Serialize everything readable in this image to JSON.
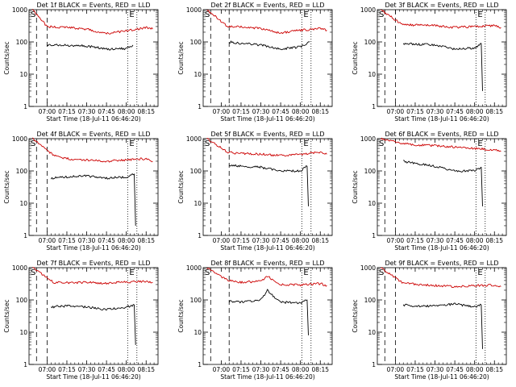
{
  "colors": {
    "events": "#000000",
    "lld": "#cc0000",
    "axes": "#000000",
    "background": "#ffffff"
  },
  "shared": {
    "ylabel": "Counts/sec",
    "xlabel": "Start Time (18-Jul-11 06:46:20)",
    "yticks": [
      "1",
      "10",
      "100",
      "1000"
    ],
    "xticks": [
      "07:00",
      "07:15",
      "07:30",
      "07:45",
      "08:00",
      "08:15"
    ],
    "marker_s": "S",
    "marker_e": "E"
  },
  "chart_data": [
    {
      "type": "line",
      "title": "Det 1f BLACK = Events, RED = LLD",
      "yscale": "log",
      "ylim": [
        1,
        1000
      ],
      "xlim": [
        "06:46:20",
        "08:24"
      ],
      "dashed_lines": [
        "06:52",
        "07:00"
      ],
      "dotted_lines": [
        "08:01",
        "08:08"
      ],
      "series": [
        {
          "name": "Events",
          "color": "black",
          "x": [
            "07:00",
            "07:15",
            "07:30",
            "07:45",
            "08:00",
            "08:05"
          ],
          "y": [
            80,
            78,
            75,
            60,
            62,
            80
          ]
        },
        {
          "name": "LLD",
          "color": "red",
          "x": [
            "06:49",
            "07:00",
            "07:15",
            "07:30",
            "07:45",
            "08:00",
            "08:15",
            "08:20"
          ],
          "y": [
            1000,
            300,
            280,
            250,
            180,
            220,
            280,
            250
          ]
        }
      ]
    },
    {
      "type": "line",
      "title": "Det 2f BLACK = Events, RED = LLD",
      "yscale": "log",
      "ylim": [
        1,
        1000
      ],
      "xlim": [
        "06:46:20",
        "08:24"
      ],
      "dashed_lines": [
        "06:52",
        "07:06"
      ],
      "dotted_lines": [
        "08:01",
        "08:08"
      ],
      "series": [
        {
          "name": "Events",
          "color": "black",
          "x": [
            "07:06",
            "07:15",
            "07:30",
            "07:45",
            "08:00",
            "08:07"
          ],
          "y": [
            100,
            90,
            80,
            60,
            70,
            100
          ]
        },
        {
          "name": "LLD",
          "color": "red",
          "x": [
            "06:49",
            "07:05",
            "07:15",
            "07:30",
            "07:45",
            "08:00",
            "08:15",
            "08:20"
          ],
          "y": [
            1000,
            300,
            290,
            260,
            190,
            230,
            260,
            230
          ]
        }
      ]
    },
    {
      "type": "line",
      "title": "Det 3f BLACK = Events, RED = LLD",
      "yscale": "log",
      "ylim": [
        1,
        1000
      ],
      "xlim": [
        "06:46:20",
        "08:24"
      ],
      "dashed_lines": [
        "06:52",
        "07:00"
      ],
      "dotted_lines": [
        "08:01",
        "08:08"
      ],
      "series": [
        {
          "name": "Events",
          "color": "black",
          "x": [
            "07:06",
            "07:15",
            "07:30",
            "07:45",
            "08:00",
            "08:05",
            "08:06"
          ],
          "y": [
            90,
            85,
            80,
            60,
            65,
            90,
            3
          ]
        },
        {
          "name": "LLD",
          "color": "red",
          "x": [
            "06:49",
            "07:05",
            "07:15",
            "07:30",
            "07:45",
            "08:00",
            "08:15",
            "08:20"
          ],
          "y": [
            1000,
            350,
            330,
            320,
            280,
            300,
            320,
            280
          ]
        }
      ]
    },
    {
      "type": "line",
      "title": "Det 4f BLACK = Events, RED = LLD",
      "yscale": "log",
      "ylim": [
        1,
        1000
      ],
      "xlim": [
        "06:46:20",
        "08:24"
      ],
      "dashed_lines": [
        "06:52",
        "07:00"
      ],
      "dotted_lines": [
        "08:01",
        "08:08"
      ],
      "series": [
        {
          "name": "Events",
          "color": "black",
          "x": [
            "07:03",
            "07:15",
            "07:30",
            "07:45",
            "08:00",
            "08:06",
            "08:07"
          ],
          "y": [
            60,
            65,
            70,
            60,
            65,
            80,
            2
          ]
        },
        {
          "name": "LLD",
          "color": "red",
          "x": [
            "06:49",
            "07:05",
            "07:15",
            "07:30",
            "07:45",
            "08:00",
            "08:15",
            "08:20"
          ],
          "y": [
            1000,
            300,
            240,
            220,
            200,
            220,
            240,
            200
          ]
        }
      ]
    },
    {
      "type": "line",
      "title": "Det 5f BLACK = Events, RED = LLD",
      "yscale": "log",
      "ylim": [
        1,
        1000
      ],
      "xlim": [
        "06:46:20",
        "08:24"
      ],
      "dashed_lines": [
        "06:52",
        "07:06"
      ],
      "dotted_lines": [
        "08:01",
        "08:08"
      ],
      "series": [
        {
          "name": "Events",
          "color": "black",
          "x": [
            "07:06",
            "07:15",
            "07:30",
            "07:45",
            "08:00",
            "08:05",
            "08:06"
          ],
          "y": [
            150,
            140,
            130,
            100,
            100,
            140,
            8
          ]
        },
        {
          "name": "LLD",
          "color": "red",
          "x": [
            "06:49",
            "07:05",
            "07:15",
            "07:30",
            "07:45",
            "08:00",
            "08:15",
            "08:20"
          ],
          "y": [
            1000,
            380,
            350,
            330,
            300,
            330,
            380,
            330
          ]
        }
      ]
    },
    {
      "type": "line",
      "title": "Det 6f BLACK = Events, RED = LLD",
      "yscale": "log",
      "ylim": [
        1,
        1000
      ],
      "xlim": [
        "06:46:20",
        "08:24"
      ],
      "dashed_lines": [
        "06:52",
        "07:00"
      ],
      "dotted_lines": [
        "08:01",
        "08:08"
      ],
      "series": [
        {
          "name": "Events",
          "color": "black",
          "x": [
            "07:06",
            "07:15",
            "07:30",
            "07:45",
            "08:00",
            "08:05",
            "08:06"
          ],
          "y": [
            200,
            170,
            140,
            100,
            100,
            130,
            8
          ]
        },
        {
          "name": "LLD",
          "color": "red",
          "x": [
            "06:49",
            "07:05",
            "07:15",
            "07:30",
            "07:45",
            "08:00",
            "08:15",
            "08:20"
          ],
          "y": [
            1000,
            700,
            650,
            600,
            550,
            500,
            450,
            400
          ]
        }
      ]
    },
    {
      "type": "line",
      "title": "Det 7f BLACK = Events, RED = LLD",
      "yscale": "log",
      "ylim": [
        1,
        1000
      ],
      "xlim": [
        "06:46:20",
        "08:24"
      ],
      "dashed_lines": [
        "06:52",
        "07:00"
      ],
      "dotted_lines": [
        "08:01",
        "08:08"
      ],
      "series": [
        {
          "name": "Events",
          "color": "black",
          "x": [
            "07:03",
            "07:15",
            "07:30",
            "07:45",
            "08:00",
            "08:06",
            "08:07"
          ],
          "y": [
            60,
            65,
            60,
            50,
            60,
            70,
            4
          ]
        },
        {
          "name": "LLD",
          "color": "red",
          "x": [
            "06:49",
            "07:05",
            "07:15",
            "07:30",
            "07:45",
            "08:00",
            "08:15",
            "08:20"
          ],
          "y": [
            1000,
            350,
            340,
            350,
            330,
            360,
            380,
            350
          ]
        }
      ]
    },
    {
      "type": "line",
      "title": "Det 8f BLACK = Events, RED = LLD",
      "yscale": "log",
      "ylim": [
        1,
        1000
      ],
      "xlim": [
        "06:46:20",
        "08:24"
      ],
      "dashed_lines": [
        "06:52",
        "07:06"
      ],
      "dotted_lines": [
        "08:01",
        "08:08"
      ],
      "series": [
        {
          "name": "Events",
          "color": "black",
          "x": [
            "07:06",
            "07:15",
            "07:30",
            "07:35",
            "07:40",
            "07:45",
            "08:00",
            "08:05",
            "08:06"
          ],
          "y": [
            90,
            85,
            100,
            200,
            120,
            85,
            80,
            100,
            8
          ]
        },
        {
          "name": "LLD",
          "color": "red",
          "x": [
            "06:49",
            "07:05",
            "07:15",
            "07:30",
            "07:35",
            "07:40",
            "07:45",
            "08:00",
            "08:15",
            "08:20"
          ],
          "y": [
            1000,
            400,
            350,
            380,
            550,
            380,
            300,
            290,
            320,
            280
          ]
        }
      ]
    },
    {
      "type": "line",
      "title": "Det 9f BLACK = Events, RED = LLD",
      "yscale": "log",
      "ylim": [
        1,
        1000
      ],
      "xlim": [
        "06:46:20",
        "08:24"
      ],
      "dashed_lines": [
        "06:52",
        "07:00"
      ],
      "dotted_lines": [
        "08:01",
        "08:08"
      ],
      "series": [
        {
          "name": "Events",
          "color": "black",
          "x": [
            "07:06",
            "07:15",
            "07:30",
            "07:45",
            "08:00",
            "08:05",
            "08:06"
          ],
          "y": [
            70,
            65,
            65,
            75,
            60,
            70,
            3
          ]
        },
        {
          "name": "LLD",
          "color": "red",
          "x": [
            "06:49",
            "07:05",
            "07:15",
            "07:30",
            "07:45",
            "08:00",
            "08:15",
            "08:20"
          ],
          "y": [
            1000,
            350,
            300,
            280,
            260,
            280,
            290,
            260
          ]
        }
      ]
    }
  ]
}
